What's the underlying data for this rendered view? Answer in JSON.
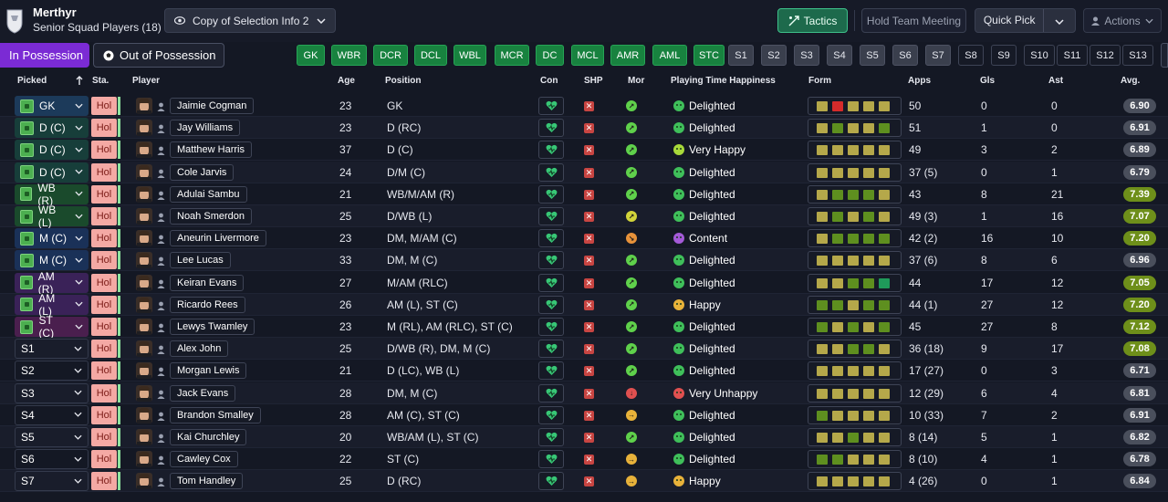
{
  "header": {
    "club_name": "Merthyr",
    "squad_label": "Senior Squad Players (18)",
    "selection_dropdown": "Copy of Selection Info 2",
    "tactics_label": "Tactics",
    "hold_meeting_label": "Hold Team Meeting",
    "quick_pick_label": "Quick Pick",
    "actions_label": "Actions"
  },
  "possession": {
    "in_label": "In Possession",
    "out_label": "Out of Possession"
  },
  "position_buttons": [
    {
      "label": "GK",
      "state": "on"
    },
    {
      "label": "WBR",
      "state": "on"
    },
    {
      "label": "DCR",
      "state": "on"
    },
    {
      "label": "DCL",
      "state": "on"
    },
    {
      "label": "WBL",
      "state": "on"
    },
    {
      "label": "MCR",
      "state": "on"
    },
    {
      "label": "DC",
      "state": "on"
    },
    {
      "label": "MCL",
      "state": "on"
    },
    {
      "label": "AMR",
      "state": "on"
    },
    {
      "label": "AML",
      "state": "on"
    },
    {
      "label": "STC",
      "state": "on"
    },
    {
      "label": "S1",
      "state": "mid"
    },
    {
      "label": "S2",
      "state": "mid"
    },
    {
      "label": "S3",
      "state": "mid"
    },
    {
      "label": "S4",
      "state": "mid"
    },
    {
      "label": "S5",
      "state": "mid"
    },
    {
      "label": "S6",
      "state": "mid"
    },
    {
      "label": "S7",
      "state": "mid"
    },
    {
      "label": "S8",
      "state": "off"
    },
    {
      "label": "S9",
      "state": "off"
    },
    {
      "label": "S10",
      "state": "off"
    },
    {
      "label": "S11",
      "state": "off"
    },
    {
      "label": "S12",
      "state": "off"
    },
    {
      "label": "S13",
      "state": "off"
    }
  ],
  "columns": {
    "picked": "Picked",
    "sta": "Sta.",
    "player": "Player",
    "age": "Age",
    "position": "Position",
    "con": "Con",
    "shp": "SHP",
    "mor": "Mor",
    "pth": "Playing Time Happiness",
    "form": "Form",
    "apps": "Apps",
    "gls": "Gls",
    "ast": "Ast",
    "avg": "Avg."
  },
  "colors": {
    "form_olive": "#b5a84a",
    "form_green": "#5e8f1f",
    "form_red": "#d62b2b",
    "form_teal": "#1f9a5a",
    "avg_grey": "#4a4f5c",
    "avg_good": "#6e8f1a",
    "delighted": "#3fbf5a",
    "very_happy": "#a8d93a",
    "content": "#a45ad8",
    "happy": "#e8b23a",
    "very_unhappy": "#e05050"
  },
  "players": [
    {
      "picked": "GK",
      "slot_color": "#1c3a5a",
      "status": "Hol",
      "name": "Jaimie Cogman",
      "age": "23",
      "position": "GK",
      "mor_color": "#5fd14b",
      "mor_sym": "↗",
      "pth_icon": "delighted",
      "pth": "Delighted",
      "form": [
        "o",
        "r",
        "o",
        "o",
        "o"
      ],
      "apps": "50",
      "gls": "0",
      "ast": "0",
      "avg": "6.90",
      "avg_tone": "grey"
    },
    {
      "picked": "D (C)",
      "slot_color": "#173e3a",
      "status": "Hol",
      "name": "Jay Williams",
      "age": "23",
      "position": "D (RC)",
      "mor_color": "#5fd14b",
      "mor_sym": "↗",
      "pth_icon": "delighted",
      "pth": "Delighted",
      "form": [
        "o",
        "g",
        "o",
        "o",
        "g"
      ],
      "apps": "51",
      "gls": "1",
      "ast": "0",
      "avg": "6.91",
      "avg_tone": "grey"
    },
    {
      "picked": "D (C)",
      "slot_color": "#173e3a",
      "status": "Hol",
      "name": "Matthew Harris",
      "age": "37",
      "position": "D (C)",
      "mor_color": "#5fd14b",
      "mor_sym": "↗",
      "pth_icon": "very_happy",
      "pth": "Very Happy",
      "form": [
        "o",
        "o",
        "o",
        "o",
        "o"
      ],
      "apps": "49",
      "gls": "3",
      "ast": "2",
      "avg": "6.89",
      "avg_tone": "grey"
    },
    {
      "picked": "D (C)",
      "slot_color": "#173e3a",
      "status": "Hol",
      "name": "Cole Jarvis",
      "age": "24",
      "position": "D/M (C)",
      "mor_color": "#5fd14b",
      "mor_sym": "↗",
      "pth_icon": "delighted",
      "pth": "Delighted",
      "form": [
        "o",
        "o",
        "o",
        "o",
        "o"
      ],
      "apps": "37 (5)",
      "gls": "0",
      "ast": "1",
      "avg": "6.79",
      "avg_tone": "grey"
    },
    {
      "picked": "WB (R)",
      "slot_color": "#1a4a2c",
      "status": "Hol",
      "name": "Adulai Sambu",
      "age": "21",
      "position": "WB/M/AM (R)",
      "mor_color": "#5fd14b",
      "mor_sym": "↗",
      "pth_icon": "delighted",
      "pth": "Delighted",
      "form": [
        "o",
        "g",
        "g",
        "g",
        "o"
      ],
      "apps": "43",
      "gls": "8",
      "ast": "21",
      "avg": "7.39",
      "avg_tone": "good"
    },
    {
      "picked": "WB (L)",
      "slot_color": "#1a4a2c",
      "status": "Hol",
      "name": "Noah Smerdon",
      "age": "25",
      "position": "D/WB (L)",
      "mor_color": "#d2d43a",
      "mor_sym": "↗",
      "pth_icon": "delighted",
      "pth": "Delighted",
      "form": [
        "o",
        "g",
        "o",
        "g",
        "o"
      ],
      "apps": "49 (3)",
      "gls": "1",
      "ast": "16",
      "avg": "7.07",
      "avg_tone": "good"
    },
    {
      "picked": "M (C)",
      "slot_color": "#1a3158",
      "status": "Hol",
      "name": "Aneurin Livermore",
      "age": "23",
      "position": "DM, M/AM (C)",
      "mor_color": "#e8923a",
      "mor_sym": "↘",
      "pth_icon": "content",
      "pth": "Content",
      "form": [
        "o",
        "g",
        "g",
        "g",
        "g"
      ],
      "apps": "42 (2)",
      "gls": "16",
      "ast": "10",
      "avg": "7.20",
      "avg_tone": "good"
    },
    {
      "picked": "M (C)",
      "slot_color": "#1a3158",
      "status": "Hol",
      "name": "Lee Lucas",
      "age": "33",
      "position": "DM, M (C)",
      "mor_color": "#5fd14b",
      "mor_sym": "↗",
      "pth_icon": "delighted",
      "pth": "Delighted",
      "form": [
        "o",
        "o",
        "o",
        "o",
        "o"
      ],
      "apps": "37 (6)",
      "gls": "8",
      "ast": "6",
      "avg": "6.96",
      "avg_tone": "grey"
    },
    {
      "picked": "AM (R)",
      "slot_color": "#3a2258",
      "status": "Hol",
      "name": "Keiran Evans",
      "age": "27",
      "position": "M/AM (RLC)",
      "mor_color": "#5fd14b",
      "mor_sym": "↗",
      "pth_icon": "delighted",
      "pth": "Delighted",
      "form": [
        "o",
        "o",
        "g",
        "g",
        "t"
      ],
      "apps": "44",
      "gls": "17",
      "ast": "12",
      "avg": "7.05",
      "avg_tone": "good"
    },
    {
      "picked": "AM (L)",
      "slot_color": "#3a2258",
      "status": "Hol",
      "name": "Ricardo Rees",
      "age": "26",
      "position": "AM (L), ST (C)",
      "mor_color": "#5fd14b",
      "mor_sym": "↗",
      "pth_icon": "happy",
      "pth": "Happy",
      "form": [
        "g",
        "g",
        "o",
        "g",
        "g"
      ],
      "apps": "44 (1)",
      "gls": "27",
      "ast": "12",
      "avg": "7.20",
      "avg_tone": "good"
    },
    {
      "picked": "ST (C)",
      "slot_color": "#4a1f4e",
      "status": "Hol",
      "name": "Lewys Twamley",
      "age": "23",
      "position": "M (RL), AM (RLC), ST (C)",
      "mor_color": "#5fd14b",
      "mor_sym": "↗",
      "pth_icon": "delighted",
      "pth": "Delighted",
      "form": [
        "g",
        "o",
        "g",
        "o",
        "g"
      ],
      "apps": "45",
      "gls": "27",
      "ast": "8",
      "avg": "7.12",
      "avg_tone": "good"
    },
    {
      "picked": "S1",
      "slot_color": "",
      "status": "Hol",
      "name": "Alex John",
      "age": "25",
      "position": "D/WB (R), DM, M (C)",
      "mor_color": "#5fd14b",
      "mor_sym": "↗",
      "pth_icon": "delighted",
      "pth": "Delighted",
      "form": [
        "o",
        "o",
        "g",
        "g",
        "o"
      ],
      "apps": "36 (18)",
      "gls": "9",
      "ast": "17",
      "avg": "7.08",
      "avg_tone": "good"
    },
    {
      "picked": "S2",
      "slot_color": "",
      "status": "Hol",
      "name": "Morgan Lewis",
      "age": "21",
      "position": "D (LC), WB (L)",
      "mor_color": "#5fd14b",
      "mor_sym": "↗",
      "pth_icon": "delighted",
      "pth": "Delighted",
      "form": [
        "o",
        "o",
        "o",
        "o",
        "o"
      ],
      "apps": "17 (27)",
      "gls": "0",
      "ast": "3",
      "avg": "6.71",
      "avg_tone": "grey"
    },
    {
      "picked": "S3",
      "slot_color": "",
      "status": "Hol",
      "name": "Jack Evans",
      "age": "28",
      "position": "DM, M (C)",
      "mor_color": "#e05050",
      "mor_sym": "↓",
      "pth_icon": "very_unhappy",
      "pth": "Very Unhappy",
      "form": [
        "o",
        "o",
        "o",
        "o",
        "o"
      ],
      "apps": "12 (29)",
      "gls": "6",
      "ast": "4",
      "avg": "6.81",
      "avg_tone": "grey"
    },
    {
      "picked": "S4",
      "slot_color": "",
      "status": "Hol",
      "name": "Brandon Smalley",
      "age": "28",
      "position": "AM (C), ST (C)",
      "mor_color": "#e8b23a",
      "mor_sym": "→",
      "pth_icon": "delighted",
      "pth": "Delighted",
      "form": [
        "g",
        "o",
        "o",
        "o",
        "o"
      ],
      "apps": "10 (33)",
      "gls": "7",
      "ast": "2",
      "avg": "6.91",
      "avg_tone": "grey"
    },
    {
      "picked": "S5",
      "slot_color": "",
      "status": "Hol",
      "name": "Kai Churchley",
      "age": "20",
      "position": "WB/AM (L), ST (C)",
      "mor_color": "#5fd14b",
      "mor_sym": "↗",
      "pth_icon": "delighted",
      "pth": "Delighted",
      "form": [
        "o",
        "o",
        "g",
        "o",
        "o"
      ],
      "apps": "8 (14)",
      "gls": "5",
      "ast": "1",
      "avg": "6.82",
      "avg_tone": "grey"
    },
    {
      "picked": "S6",
      "slot_color": "",
      "status": "Hol",
      "name": "Cawley Cox",
      "age": "22",
      "position": "ST (C)",
      "mor_color": "#e8b23a",
      "mor_sym": "→",
      "pth_icon": "delighted",
      "pth": "Delighted",
      "form": [
        "g",
        "g",
        "o",
        "o",
        "o"
      ],
      "apps": "8 (10)",
      "gls": "4",
      "ast": "1",
      "avg": "6.78",
      "avg_tone": "grey"
    },
    {
      "picked": "S7",
      "slot_color": "",
      "status": "Hol",
      "name": "Tom Handley",
      "age": "25",
      "position": "D (RC)",
      "mor_color": "#e8b23a",
      "mor_sym": "→",
      "pth_icon": "happy",
      "pth": "Happy",
      "form": [
        "o",
        "o",
        "o",
        "o",
        "o"
      ],
      "apps": "4 (26)",
      "gls": "0",
      "ast": "1",
      "avg": "6.84",
      "avg_tone": "grey"
    }
  ]
}
